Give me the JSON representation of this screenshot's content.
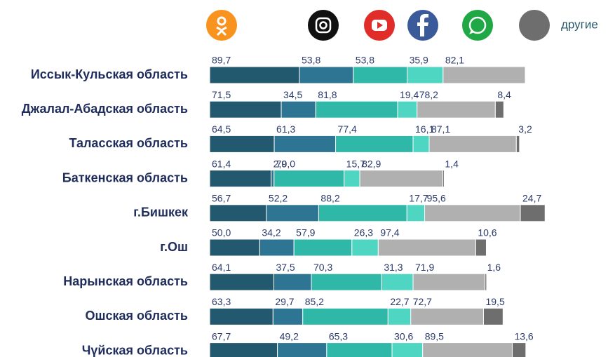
{
  "chart_data": {
    "type": "stacked-bar-horizontal",
    "categories": [
      "Иссык-Кульская область",
      "Джалал-Абадская область",
      "Таласская область",
      "Баткенская область",
      "г.Бишкек",
      "г.Ош",
      "Нарынская область",
      "Ошская область",
      "Чүйская область"
    ],
    "series": [
      {
        "color": "#22596e",
        "legend_color": "#f7931e",
        "values": [
          89.7,
          71.5,
          64.5,
          61.4,
          56.7,
          50.0,
          64.1,
          63.3,
          67.7
        ],
        "value_labels": [
          "89,7",
          "71,5",
          "64,5",
          "61,4",
          "56,7",
          "50,0",
          "64,1",
          "63,3",
          "67,7"
        ]
      },
      {
        "color": "#2e7594",
        "legend_color": "#111111",
        "values": [
          53.8,
          34.5,
          61.3,
          2.9,
          52.2,
          34.2,
          37.5,
          29.7,
          49.2
        ],
        "value_labels": [
          "53,8",
          "34,5",
          "61,3",
          "2,9",
          "52,2",
          "34,2",
          "37,5",
          "29,7",
          "49,2"
        ]
      },
      {
        "color": "#2fb8a8",
        "legend_color": "#e02d2a",
        "values": [
          53.8,
          81.8,
          77.4,
          70.0,
          88.2,
          57.9,
          70.3,
          85.2,
          65.3
        ],
        "value_labels": [
          "53,8",
          "81,8",
          "77,4",
          "70,0",
          "88,2",
          "57,9",
          "70,3",
          "85,2",
          "65,3"
        ]
      },
      {
        "color": "#4ed6c3",
        "legend_color": "#3b5a9a",
        "values": [
          35.9,
          19.4,
          16.1,
          15.7,
          17.7,
          26.3,
          31.3,
          22.7,
          30.6
        ],
        "value_labels": [
          "35,9",
          "19,4",
          "16,1",
          "15,7",
          "17,7",
          "26,3",
          "31,3",
          "22,7",
          "30,6"
        ]
      },
      {
        "color": "#b0b0b0",
        "legend_color": "#1fa845",
        "values": [
          82.1,
          78.2,
          87.1,
          82.9,
          95.6,
          97.4,
          71.9,
          72.7,
          89.5
        ],
        "value_labels": [
          "82,1",
          "78,2",
          "87,1",
          "82,9",
          "95,6",
          "97,4",
          "71,9",
          "72,7",
          "89,5"
        ]
      },
      {
        "name": "другие",
        "color": "#6e6e6e",
        "legend_color": "#6e6e6e",
        "values": [
          null,
          8.4,
          3.2,
          1.4,
          24.7,
          10.6,
          1.6,
          19.5,
          13.6
        ],
        "value_labels": [
          null,
          "8,4",
          "3,2",
          "1,4",
          "24,7",
          "10,6",
          "1,6",
          "19,5",
          "13,6"
        ]
      }
    ]
  }
}
